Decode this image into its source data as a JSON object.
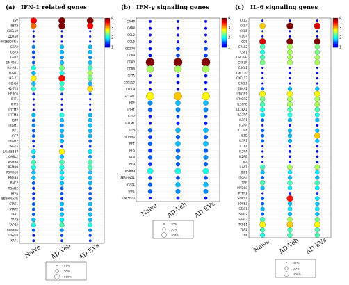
{
  "chart_data": [
    {
      "type": "bubble",
      "panel_label": "(a)",
      "title": "IFN-1 related genes",
      "groups": [
        "Naive",
        "AD-Veh",
        "AD-EVs"
      ],
      "genes": [
        "BSV",
        "BST2",
        "CXCL10",
        "DDX60",
        "F830016B08Rik",
        "GBP2",
        "GBP3",
        "GBP7",
        "GM4951",
        "H2-AB1",
        "H2-D1",
        "H2-K1",
        "H2-Q4",
        "H2-T23",
        "HERC6",
        "IFIT1",
        "IFIT3",
        "IFITM2",
        "IFITM3",
        "IGTP",
        "IRGM1",
        "IRF1",
        "IRF7",
        "IRGM2",
        "ISG15",
        "LGALS3BP",
        "OASL2",
        "PSMB8",
        "PSMB9",
        "PSMB10",
        "PSMB8",
        "RNF2",
        "RSAD2",
        "RTP4",
        "SERPINA3G",
        "STAT1",
        "STAT2",
        "TAP1",
        "TAP2",
        "TAPBP",
        "TRIM30A",
        "USP18",
        "XAF1"
      ],
      "values": [
        [
          3.5,
          4.0,
          4.0
        ],
        [
          3.0,
          4.0,
          3.5
        ],
        [
          0.2,
          0.3,
          0.3
        ],
        [
          0.2,
          0.3,
          0.3
        ],
        [
          0.2,
          0.3,
          0.3
        ],
        [
          0.8,
          1.0,
          1.0
        ],
        [
          0.6,
          1.0,
          1.0
        ],
        [
          0.5,
          0.8,
          0.8
        ],
        [
          0.6,
          1.0,
          1.0
        ],
        [
          1.4,
          1.8,
          1.6
        ],
        [
          1.0,
          1.4,
          2.0
        ],
        [
          2.4,
          3.4,
          1.8
        ],
        [
          1.0,
          1.5,
          1.0
        ],
        [
          1.5,
          1.5,
          2.5
        ],
        [
          0.3,
          0.4,
          0.4
        ],
        [
          0.2,
          0.3,
          0.3
        ],
        [
          0.2,
          0.3,
          0.3
        ],
        [
          0.2,
          0.3,
          0.3
        ],
        [
          1.0,
          1.4,
          1.0
        ],
        [
          0.6,
          1.0,
          1.0
        ],
        [
          0.8,
          0.8,
          1.0
        ],
        [
          0.6,
          1.0,
          1.0
        ],
        [
          0.6,
          1.0,
          1.0
        ],
        [
          0.4,
          1.0,
          0.6
        ],
        [
          0.2,
          0.4,
          0.4
        ],
        [
          1.2,
          2.4,
          1.2
        ],
        [
          0.8,
          1.0,
          0.8
        ],
        [
          1.6,
          1.6,
          1.6
        ],
        [
          1.4,
          1.4,
          1.6
        ],
        [
          1.0,
          1.2,
          1.0
        ],
        [
          1.0,
          1.2,
          1.0
        ],
        [
          0.6,
          1.0,
          1.0
        ],
        [
          0.4,
          0.6,
          0.6
        ],
        [
          0.4,
          0.6,
          0.6
        ],
        [
          0.4,
          0.4,
          0.6
        ],
        [
          0.6,
          1.0,
          1.0
        ],
        [
          0.6,
          0.8,
          0.8
        ],
        [
          0.6,
          1.0,
          1.0
        ],
        [
          1.0,
          1.2,
          1.0
        ],
        [
          1.4,
          1.6,
          1.4
        ],
        [
          0.6,
          0.8,
          0.8
        ],
        [
          0.3,
          0.5,
          0.5
        ],
        [
          0.3,
          0.4,
          0.4
        ]
      ],
      "sizes": [
        [
          90,
          100,
          100
        ],
        [
          75,
          100,
          90
        ],
        [
          10,
          10,
          10
        ],
        [
          10,
          10,
          10
        ],
        [
          10,
          10,
          10
        ],
        [
          30,
          40,
          40
        ],
        [
          25,
          40,
          40
        ],
        [
          20,
          30,
          30
        ],
        [
          25,
          40,
          40
        ],
        [
          50,
          60,
          55
        ],
        [
          40,
          50,
          65
        ],
        [
          75,
          95,
          60
        ],
        [
          40,
          50,
          40
        ],
        [
          50,
          50,
          75
        ],
        [
          15,
          15,
          15
        ],
        [
          10,
          10,
          10
        ],
        [
          10,
          10,
          10
        ],
        [
          10,
          10,
          10
        ],
        [
          40,
          50,
          40
        ],
        [
          25,
          40,
          40
        ],
        [
          30,
          30,
          40
        ],
        [
          25,
          40,
          40
        ],
        [
          25,
          40,
          40
        ],
        [
          20,
          40,
          25
        ],
        [
          10,
          15,
          15
        ],
        [
          45,
          75,
          45
        ],
        [
          30,
          40,
          30
        ],
        [
          55,
          55,
          55
        ],
        [
          50,
          50,
          55
        ],
        [
          40,
          45,
          40
        ],
        [
          40,
          45,
          40
        ],
        [
          25,
          40,
          40
        ],
        [
          20,
          25,
          25
        ],
        [
          20,
          25,
          25
        ],
        [
          20,
          20,
          25
        ],
        [
          25,
          40,
          40
        ],
        [
          25,
          30,
          30
        ],
        [
          25,
          40,
          40
        ],
        [
          40,
          45,
          40
        ],
        [
          50,
          55,
          50
        ],
        [
          25,
          30,
          30
        ],
        [
          15,
          20,
          20
        ],
        [
          15,
          15,
          15
        ]
      ],
      "color_scale": {
        "min": 1,
        "max": 4,
        "ticks": [
          1,
          2,
          3,
          4
        ]
      },
      "size_legend": [
        "10%",
        "50%",
        "100%"
      ]
    },
    {
      "type": "bubble",
      "panel_label": "(b)",
      "title": "IFN-γ signaling genes",
      "groups": [
        "Naive",
        "AD-Veh",
        "AD-EVs"
      ],
      "genes": [
        "C4MP",
        "C4BP",
        "CCL2",
        "CCL5",
        "CD274",
        "CD69",
        "CD80",
        "CD86",
        "CIITA",
        "CXCL10",
        "CXCL9",
        "FCGR1",
        "HPE",
        "IFIH1",
        "IFIT2",
        "IFITM1",
        "IL15",
        "IL15RA",
        "IRF1",
        "IRF5",
        "IRF8",
        "IRF9",
        "PSMB9",
        "SERPING1",
        "STAT1",
        "TAP1",
        "TNFSF10"
      ],
      "values": [
        [
          0.2,
          0.2,
          0.2
        ],
        [
          0.2,
          0.2,
          0.2
        ],
        [
          0.2,
          0.2,
          0.2
        ],
        [
          0.2,
          0.2,
          0.2
        ],
        [
          0.3,
          0.5,
          0.5
        ],
        [
          0.3,
          0.5,
          0.5
        ],
        [
          4.0,
          4.0,
          4.0
        ],
        [
          2.0,
          2.0,
          2.0
        ],
        [
          0.2,
          0.3,
          0.3
        ],
        [
          0.2,
          0.3,
          0.3
        ],
        [
          0.2,
          0.2,
          0.2
        ],
        [
          2.4,
          2.6,
          2.4
        ],
        [
          0.8,
          1.0,
          1.0
        ],
        [
          0.6,
          0.8,
          0.8
        ],
        [
          0.3,
          0.4,
          0.4
        ],
        [
          0.2,
          0.3,
          0.3
        ],
        [
          0.6,
          1.0,
          1.0
        ],
        [
          0.4,
          0.6,
          0.6
        ],
        [
          0.6,
          1.0,
          1.0
        ],
        [
          0.4,
          0.6,
          0.6
        ],
        [
          0.6,
          0.8,
          0.8
        ],
        [
          0.4,
          0.6,
          0.6
        ],
        [
          1.4,
          1.4,
          1.4
        ],
        [
          0.4,
          0.5,
          0.5
        ],
        [
          0.6,
          1.0,
          1.0
        ],
        [
          0.6,
          0.8,
          0.8
        ],
        [
          0.2,
          0.3,
          0.3
        ]
      ],
      "sizes": [
        [
          10,
          10,
          10
        ],
        [
          10,
          10,
          10
        ],
        [
          10,
          10,
          10
        ],
        [
          10,
          10,
          10
        ],
        [
          15,
          20,
          20
        ],
        [
          15,
          20,
          20
        ],
        [
          100,
          100,
          100
        ],
        [
          70,
          70,
          70
        ],
        [
          10,
          15,
          15
        ],
        [
          10,
          15,
          15
        ],
        [
          10,
          10,
          10
        ],
        [
          85,
          90,
          85
        ],
        [
          30,
          35,
          35
        ],
        [
          25,
          30,
          30
        ],
        [
          15,
          15,
          15
        ],
        [
          10,
          15,
          15
        ],
        [
          25,
          35,
          35
        ],
        [
          20,
          25,
          25
        ],
        [
          25,
          35,
          35
        ],
        [
          20,
          25,
          25
        ],
        [
          25,
          30,
          30
        ],
        [
          20,
          25,
          25
        ],
        [
          50,
          50,
          50
        ],
        [
          20,
          20,
          20
        ],
        [
          25,
          35,
          35
        ],
        [
          25,
          30,
          30
        ],
        [
          10,
          15,
          15
        ]
      ],
      "color_scale": {
        "min": 1,
        "max": 4,
        "ticks": [
          1,
          2,
          3,
          4
        ]
      },
      "size_legend": [
        "10%",
        "50%",
        "100%"
      ]
    },
    {
      "type": "bubble",
      "panel_label": "(c)",
      "title": "IL-6 signaling genes",
      "groups": [
        "Naive",
        "AD-Veh",
        "AD-EVs"
      ],
      "genes": [
        "CCL3",
        "CCL4",
        "CCL5",
        "CD14",
        "CD8",
        "CRLF2",
        "CSF1",
        "CSF2RB",
        "CSF3R",
        "CXCL1",
        "CXCL10",
        "CXCL12",
        "CXCL9",
        "EPHA1",
        "IFNGR1",
        "IFNGR2",
        "IL10RB",
        "IL13RA1",
        "IL17RA",
        "IL1R1",
        "IL2RA",
        "IL17RA",
        "IL1D",
        "IL1R1",
        "IL1RL",
        "IL2RA",
        "IL2RB",
        "IL4",
        "IL6ST",
        "IRF1",
        "ITGA4",
        "LTBR",
        "MYD88",
        "PTPN2",
        "SOCS1",
        "SOCS3",
        "STAT1",
        "STAT2",
        "STAT3",
        "TCFB1",
        "TLR2",
        "TNF"
      ],
      "values": [
        [
          0.2,
          0.2,
          0.2
        ],
        [
          2.6,
          4.0,
          3.6
        ],
        [
          0.2,
          0.2,
          0.2
        ],
        [
          0.2,
          0.2,
          0.2
        ],
        [
          3.6,
          4.0,
          4.0
        ],
        [
          1.6,
          2.0,
          1.8
        ],
        [
          1.4,
          2.0,
          1.8
        ],
        [
          1.6,
          2.0,
          2.0
        ],
        [
          1.8,
          2.0,
          2.0
        ],
        [
          0.2,
          0.2,
          0.2
        ],
        [
          0.2,
          0.3,
          0.3
        ],
        [
          0.2,
          0.2,
          0.2
        ],
        [
          0.2,
          0.2,
          0.2
        ],
        [
          0.6,
          1.0,
          1.0
        ],
        [
          2.4,
          2.4,
          2.4
        ],
        [
          1.8,
          2.0,
          2.0
        ],
        [
          1.6,
          2.0,
          2.0
        ],
        [
          1.4,
          1.6,
          1.6
        ],
        [
          1.2,
          1.4,
          1.4
        ],
        [
          0.6,
          1.0,
          1.0
        ],
        [
          0.2,
          0.3,
          0.3
        ],
        [
          0.6,
          1.0,
          1.0
        ],
        [
          0.6,
          1.0,
          2.6
        ],
        [
          0.6,
          1.0,
          1.0
        ],
        [
          0.2,
          0.3,
          0.3
        ],
        [
          0.2,
          0.3,
          0.3
        ],
        [
          0.2,
          0.3,
          0.3
        ],
        [
          0.2,
          0.3,
          0.3
        ],
        [
          1.6,
          2.0,
          2.0
        ],
        [
          1.0,
          1.2,
          1.2
        ],
        [
          0.6,
          1.0,
          1.0
        ],
        [
          1.6,
          1.6,
          1.6
        ],
        [
          1.0,
          1.2,
          1.2
        ],
        [
          0.2,
          0.3,
          0.3
        ],
        [
          0.6,
          3.4,
          1.2
        ],
        [
          0.6,
          1.0,
          1.0
        ],
        [
          1.0,
          1.2,
          1.2
        ],
        [
          0.6,
          1.0,
          1.0
        ],
        [
          1.6,
          2.0,
          1.8
        ],
        [
          2.4,
          2.6,
          2.4
        ],
        [
          1.6,
          1.6,
          1.6
        ],
        [
          1.4,
          1.6,
          1.6
        ]
      ],
      "sizes": [
        [
          10,
          10,
          10
        ],
        [
          75,
          100,
          95
        ],
        [
          10,
          10,
          10
        ],
        [
          10,
          10,
          10
        ],
        [
          95,
          100,
          100
        ],
        [
          55,
          60,
          55
        ],
        [
          50,
          60,
          55
        ],
        [
          55,
          60,
          60
        ],
        [
          60,
          60,
          60
        ],
        [
          10,
          10,
          10
        ],
        [
          10,
          15,
          15
        ],
        [
          10,
          10,
          10
        ],
        [
          10,
          10,
          10
        ],
        [
          25,
          40,
          40
        ],
        [
          80,
          80,
          80
        ],
        [
          60,
          65,
          65
        ],
        [
          55,
          65,
          65
        ],
        [
          50,
          55,
          55
        ],
        [
          45,
          50,
          50
        ],
        [
          25,
          40,
          40
        ],
        [
          10,
          15,
          15
        ],
        [
          25,
          40,
          40
        ],
        [
          25,
          40,
          75
        ],
        [
          25,
          40,
          40
        ],
        [
          10,
          15,
          15
        ],
        [
          10,
          15,
          15
        ],
        [
          10,
          15,
          15
        ],
        [
          10,
          15,
          15
        ],
        [
          55,
          60,
          60
        ],
        [
          40,
          45,
          45
        ],
        [
          25,
          40,
          40
        ],
        [
          55,
          55,
          55
        ],
        [
          40,
          45,
          45
        ],
        [
          10,
          15,
          15
        ],
        [
          25,
          90,
          45
        ],
        [
          25,
          40,
          40
        ],
        [
          40,
          45,
          45
        ],
        [
          25,
          40,
          40
        ],
        [
          55,
          60,
          55
        ],
        [
          80,
          85,
          80
        ],
        [
          55,
          55,
          55
        ],
        [
          50,
          55,
          55
        ]
      ],
      "color_scale": {
        "min": 1,
        "max": 4,
        "ticks": [
          1,
          2,
          3,
          4
        ]
      },
      "size_legend": [
        "10%",
        "50%",
        "100%"
      ]
    }
  ]
}
